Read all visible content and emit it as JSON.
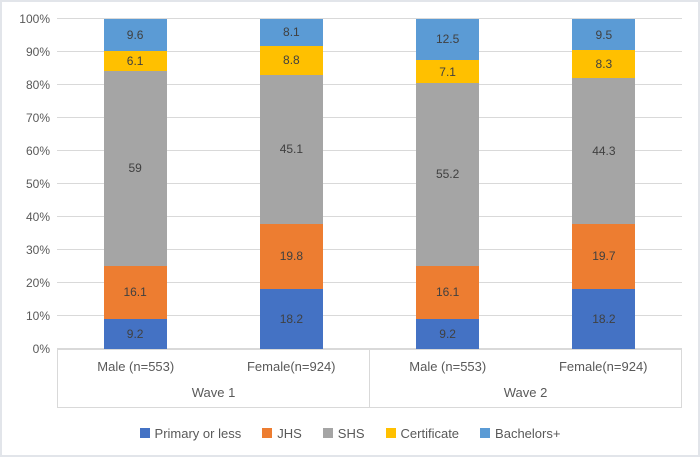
{
  "chart_data": {
    "type": "bar",
    "subtype": "stacked-100-percent-column",
    "groups": [
      {
        "label": "Wave 1",
        "categories": [
          "Male (n=553)",
          "Female(n=924)"
        ]
      },
      {
        "label": "Wave 2",
        "categories": [
          "Male (n=553)",
          "Female(n=924)"
        ]
      }
    ],
    "series": [
      {
        "name": "Primary or less",
        "color": "#4472C4",
        "values": [
          9.2,
          18.2,
          9.2,
          18.2
        ]
      },
      {
        "name": "JHS",
        "color": "#ED7D31",
        "values": [
          16.1,
          19.8,
          16.1,
          19.7
        ]
      },
      {
        "name": "SHS",
        "color": "#A5A5A5",
        "values": [
          59,
          45.1,
          55.2,
          44.3
        ]
      },
      {
        "name": "Certificate",
        "color": "#FFC000",
        "values": [
          6.1,
          8.8,
          7.1,
          8.3
        ]
      },
      {
        "name": "Bachelors+",
        "color": "#5B9BD5",
        "values": [
          9.6,
          8.1,
          12.5,
          9.5
        ]
      }
    ],
    "y_axis": {
      "min": 0,
      "max": 100,
      "ticks": [
        "0%",
        "10%",
        "20%",
        "30%",
        "40%",
        "50%",
        "60%",
        "70%",
        "80%",
        "90%",
        "100%"
      ]
    },
    "grid": true,
    "legend_position": "bottom",
    "legend": [
      "Primary or less",
      "JHS",
      "SHS",
      "Certificate",
      "Bachelors+"
    ],
    "data_labels_shown": true
  }
}
